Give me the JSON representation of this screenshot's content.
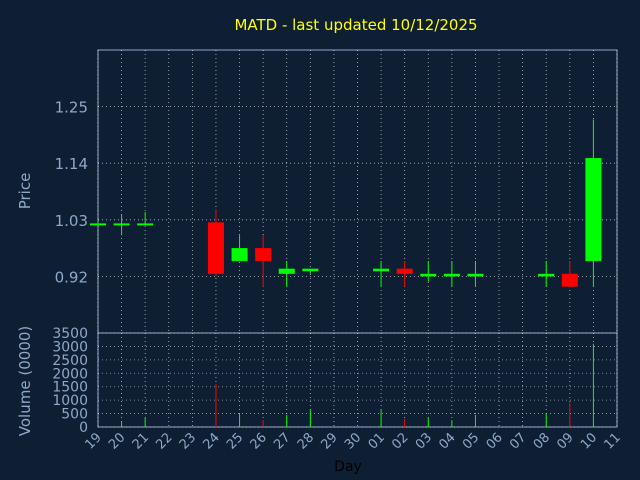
{
  "chart_data": [
    {
      "type": "candlestick",
      "title": "MATD - last updated 10/12/2025",
      "ylabel": "Price",
      "yticks": [
        "0.92",
        "1.03",
        "1.14",
        "1.25"
      ],
      "ylim": [
        0.81,
        1.36
      ],
      "grid": true,
      "x": [
        "19",
        "20",
        "21",
        "22",
        "23",
        "24",
        "25",
        "26",
        "27",
        "28",
        "29",
        "30",
        "01",
        "02",
        "03",
        "04",
        "05",
        "06",
        "07",
        "08",
        "09",
        "10",
        "11"
      ],
      "candles": [
        {
          "x": "19",
          "open": 1.023,
          "high": 1.026,
          "low": 1.02,
          "close": 1.023
        },
        {
          "x": "20",
          "open": 1.023,
          "high": 1.04,
          "low": 1.0,
          "close": 1.023
        },
        {
          "x": "21",
          "open": 1.023,
          "high": 1.045,
          "low": 1.02,
          "close": 1.023
        },
        {
          "x": "24",
          "open": 1.025,
          "high": 1.05,
          "low": 0.92,
          "close": 0.925
        },
        {
          "x": "25",
          "open": 0.95,
          "high": 1.0,
          "low": 0.95,
          "close": 0.975
        },
        {
          "x": "26",
          "open": 0.975,
          "high": 1.0,
          "low": 0.9,
          "close": 0.95
        },
        {
          "x": "27",
          "open": 0.925,
          "high": 0.95,
          "low": 0.9,
          "close": 0.935
        },
        {
          "x": "28",
          "open": 0.93,
          "high": 0.935,
          "low": 0.925,
          "close": 0.935
        },
        {
          "x": "01",
          "open": 0.93,
          "high": 0.95,
          "low": 0.9,
          "close": 0.935
        },
        {
          "x": "02",
          "open": 0.935,
          "high": 0.95,
          "low": 0.9,
          "close": 0.925
        },
        {
          "x": "03",
          "open": 0.92,
          "high": 0.95,
          "low": 0.91,
          "close": 0.925
        },
        {
          "x": "04",
          "open": 0.92,
          "high": 0.95,
          "low": 0.9,
          "close": 0.925
        },
        {
          "x": "05",
          "open": 0.92,
          "high": 0.95,
          "low": 0.9,
          "close": 0.925
        },
        {
          "x": "08",
          "open": 0.92,
          "high": 0.95,
          "low": 0.9,
          "close": 0.925
        },
        {
          "x": "09",
          "open": 0.925,
          "high": 0.95,
          "low": 0.9,
          "close": 0.9
        },
        {
          "x": "10",
          "open": 0.95,
          "high": 1.225,
          "low": 0.9,
          "close": 1.15
        }
      ]
    },
    {
      "type": "bar",
      "ylabel": "Volume (0000)",
      "xlabel": "Day",
      "yticks": [
        "0",
        "500",
        "1000",
        "1500",
        "2000",
        "2500",
        "3000",
        "3500"
      ],
      "ylim": [
        0,
        3500
      ],
      "grid": true,
      "categories": [
        "19",
        "20",
        "21",
        "22",
        "23",
        "24",
        "25",
        "26",
        "27",
        "28",
        "29",
        "30",
        "01",
        "02",
        "03",
        "04",
        "05",
        "06",
        "07",
        "08",
        "09",
        "10",
        "11"
      ],
      "values": [
        0,
        200,
        350,
        0,
        0,
        1600,
        500,
        250,
        450,
        650,
        0,
        0,
        650,
        300,
        350,
        250,
        450,
        0,
        0,
        500,
        900,
        3100,
        0
      ]
    }
  ],
  "colors": {
    "background": "#0f1f33",
    "title": "#ffff00",
    "axis_text": "#8ea8c8",
    "up": "#00ff00",
    "down": "#ff0000",
    "grid": "#ffffff"
  }
}
